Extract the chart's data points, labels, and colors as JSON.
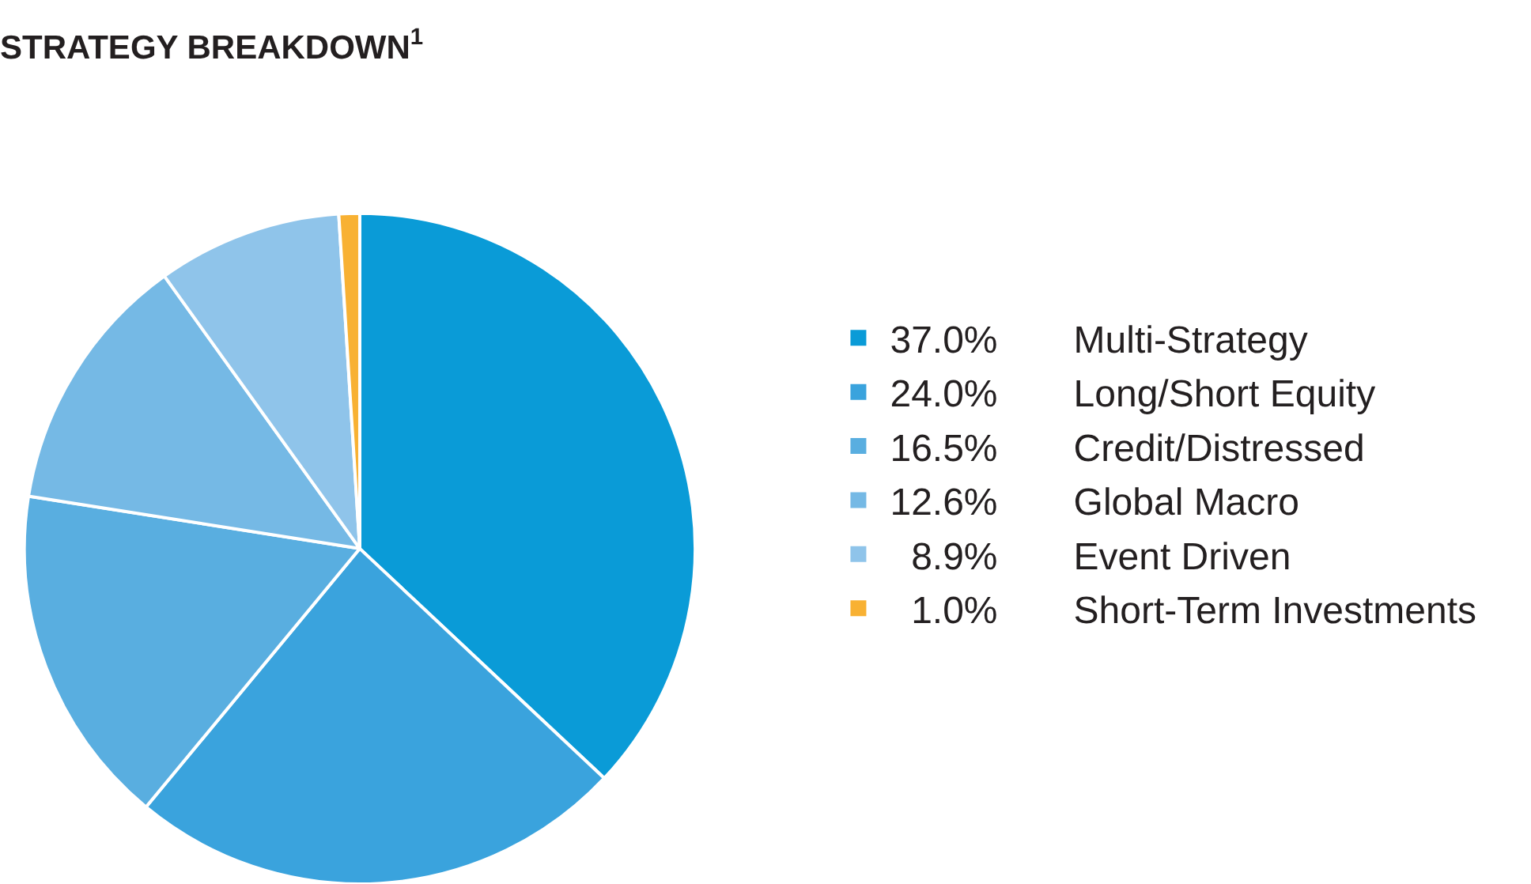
{
  "chart_data": {
    "type": "pie",
    "title": "STRATEGY BREAKDOWN$^{1}$",
    "categories": [
      "Multi-Strategy",
      "Long/Short Equity",
      "Credit/Distressed",
      "Global Macro",
      "Event Driven",
      "Short-Term Investments"
    ],
    "values": [
      37.0,
      24.0,
      16.5,
      12.6,
      8.9,
      1.0
    ],
    "value_labels": [
      "37.0%",
      "24.0%",
      "16.5%",
      "12.6%",
      "8.9%",
      "1.0%"
    ],
    "colors": [
      "#0a9bd7",
      "#3aa3dd",
      "#59aee0",
      "#75b9e5",
      "#8fc4ea",
      "#f8b133"
    ],
    "legend": "right"
  }
}
